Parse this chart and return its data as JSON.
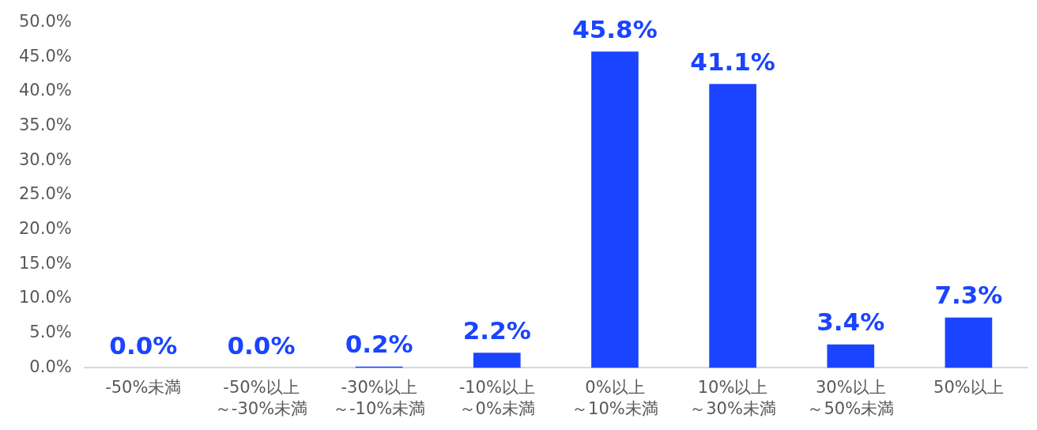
{
  "chart_data": {
    "type": "bar",
    "categories": [
      "-50%未満",
      "-50%以上～-30%未満",
      "-30%以上～-10%未満",
      "-10%以上～0%未満",
      "0%以上～10%未満",
      "10%以上～30%未満",
      "30%以上～50%未満",
      "50%以上"
    ],
    "values": [
      0,
      0,
      0.2,
      2.2,
      45.8,
      41.1,
      3.4,
      7.3
    ],
    "value_labels": [
      "0.0%",
      "0.0%",
      "0.2%",
      "2.2%",
      "45.8%",
      "41.1%",
      "3.4%",
      "7.3%"
    ],
    "color": "#1a44ff",
    "ylim": [
      0,
      50
    ],
    "yticks": [
      {
        "value": 0,
        "label": "0.0%"
      },
      {
        "value": 5,
        "label": "5.0%"
      },
      {
        "value": 10,
        "label": "10.0%"
      },
      {
        "value": 15,
        "label": "15.0%"
      },
      {
        "value": 20,
        "label": "20.0%"
      },
      {
        "value": 25,
        "label": "25.0%"
      },
      {
        "value": 30,
        "label": "30.0%"
      },
      {
        "value": 35,
        "label": "35.0%"
      },
      {
        "value": 40,
        "label": "40.0%"
      },
      {
        "value": 45,
        "label": "45.0%"
      },
      {
        "value": 50,
        "label": "50.0%"
      }
    ],
    "grid": false,
    "legend": false
  }
}
